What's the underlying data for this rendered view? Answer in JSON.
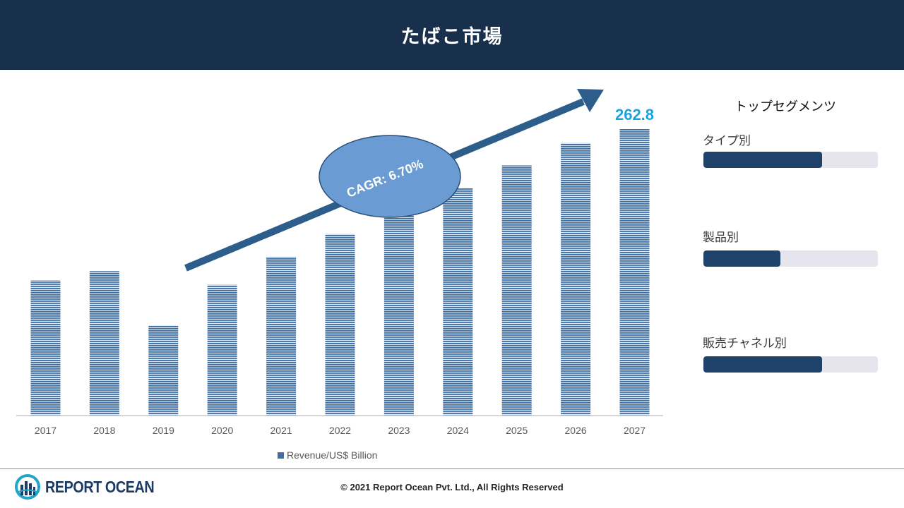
{
  "header": {
    "title": "たばこ市場"
  },
  "chart_data": {
    "type": "bar",
    "categories": [
      "2017",
      "2018",
      "2019",
      "2020",
      "2021",
      "2022",
      "2023",
      "2024",
      "2025",
      "2026",
      "2027"
    ],
    "series": [
      {
        "name": "Revenue/US$ Billion",
        "values": [
          124,
          132.5,
          82.5,
          120,
          145.5,
          166.5,
          187.5,
          208.5,
          229.5,
          250,
          262.8
        ]
      }
    ],
    "ylim": [
      0,
      290
    ],
    "data_labels": [
      {
        "category": "2027",
        "text": "262.8"
      }
    ],
    "annotation": {
      "text": "CAGR: 6.70%"
    },
    "legend": {
      "position": "bottom",
      "label": "Revenue/US$ Billion"
    },
    "grid": false,
    "colors": {
      "bar": "#3f6ea3",
      "arrow": "#2d5d8b",
      "ellipse": "#6a9bd2",
      "data_label": "#1aa3de"
    }
  },
  "segments": {
    "title": "トップセグメンツ",
    "items": [
      {
        "label": "タイプ別",
        "value": 0.68
      },
      {
        "label": "製品別",
        "value": 0.44
      },
      {
        "label": "販売チャネル別",
        "value": 0.68
      }
    ]
  },
  "footer": {
    "brand": "REPORT OCEAN",
    "copyright": "© 2021 Report Ocean Pvt. Ltd., All Rights Reserved"
  },
  "colors": {
    "header_bg": "#18304b",
    "segment_fill": "#1e426a",
    "segment_track": "#e6e5ee"
  }
}
